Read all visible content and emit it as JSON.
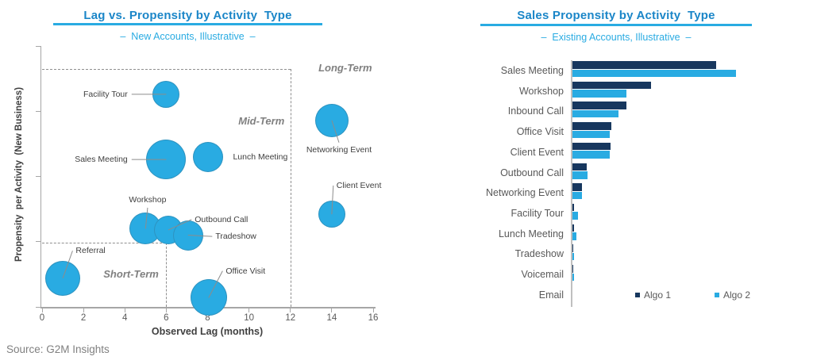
{
  "source": "Source: G2M Insights",
  "colors": {
    "cyan": "#29ABE2",
    "navy": "#17375E",
    "title_blue": "#1B86C8",
    "axis_gray": "#A6A6A6",
    "text_gray": "#595959"
  },
  "legend": {
    "position": "bottom-right"
  },
  "chart_data": [
    {
      "type": "scatter",
      "title": "Lag vs. Propensity by Activity  Type",
      "subtitle": "–  New Accounts, Illustrative  –",
      "xlabel": "Observed Lag (months)",
      "ylabel": "Propensity  per Activity  (New Business)",
      "xlim": [
        0,
        16
      ],
      "ylim": [
        0,
        100
      ],
      "xticks": [
        0,
        2,
        4,
        6,
        8,
        10,
        12,
        14,
        16
      ],
      "yticks": [
        0,
        25,
        50,
        75,
        100
      ],
      "grid": false,
      "bubble_color": "#29ABE2",
      "points": [
        {
          "label": "Facility Tour",
          "x": 6,
          "y": 81.5,
          "r": 17,
          "align": "right",
          "anchor": [
            4.25,
            81.5
          ],
          "leader": true
        },
        {
          "label": "Sales Meeting",
          "x": 6,
          "y": 56.5,
          "r": 25,
          "align": "right",
          "anchor": [
            4.25,
            56.5
          ],
          "leader": true
        },
        {
          "label": "Lunch Meeting",
          "x": 8,
          "y": 57.5,
          "r": 19,
          "align": "left",
          "anchor": [
            9.15,
            57.5
          ],
          "leader": false
        },
        {
          "label": "Networking Event",
          "x": 14,
          "y": 71.5,
          "r": 21,
          "align": "below",
          "anchor": [
            14.35,
            63.0
          ],
          "leader": true
        },
        {
          "label": "Client Event",
          "x": 14,
          "y": 35.5,
          "r": 17,
          "align": "left",
          "anchor": [
            14.15,
            46.5
          ],
          "leader": true
        },
        {
          "label": "Workshop",
          "x": 5,
          "y": 30.0,
          "r": 20,
          "align": "above",
          "anchor": [
            5.1,
            38.0
          ],
          "leader": true
        },
        {
          "label": "Outbound Call",
          "x": 6.1,
          "y": 29.5,
          "r": 18,
          "align": "left",
          "anchor": [
            7.3,
            33.5
          ],
          "leader": true
        },
        {
          "label": "Tradeshow",
          "x": 7.05,
          "y": 27.5,
          "r": 19,
          "align": "left",
          "anchor": [
            8.3,
            27.0
          ],
          "leader": true
        },
        {
          "label": "Referral",
          "x": 1,
          "y": 11.0,
          "r": 22,
          "align": "left",
          "anchor": [
            1.55,
            21.5
          ],
          "leader": true
        },
        {
          "label": "Office Visit",
          "x": 8.05,
          "y": 3.5,
          "r": 23,
          "align": "left",
          "anchor": [
            8.8,
            13.8
          ],
          "leader": true
        }
      ],
      "quadrants": [
        {
          "label": "Long-Term",
          "x": 14.65,
          "y": 91.5
        },
        {
          "label": "Mid-Term",
          "x": 10.6,
          "y": 71.0
        },
        {
          "label": "Short-Term",
          "x": 4.3,
          "y": 12.5
        }
      ],
      "dashed_lines": [
        {
          "o": "h",
          "y": 91.2,
          "x1": 0,
          "x2": 12
        },
        {
          "o": "v",
          "x": 12,
          "y1": 0,
          "y2": 91.2
        },
        {
          "o": "h",
          "y": 24.6,
          "x1": 0,
          "x2": 6
        },
        {
          "o": "v",
          "x": 6,
          "y1": 0,
          "y2": 24.6
        }
      ]
    },
    {
      "type": "bar",
      "orientation": "horizontal",
      "title": "Sales Propensity by Activity  Type",
      "subtitle": "–  Existing Accounts, Illustrative  –",
      "xlabel": "",
      "ylabel": "",
      "xlim": [
        0,
        100
      ],
      "grid": false,
      "categories": [
        "Sales Meeting",
        "Workshop",
        "Inbound Call",
        "Office Visit",
        "Client Event",
        "Outbound Call",
        "Networking Event",
        "Facility Tour",
        "Lunch Meeting",
        "Tradeshow",
        "Voicemail",
        "Email"
      ],
      "series": [
        {
          "name": "Algo 1",
          "color": "#17375E",
          "values": [
            88,
            48,
            33,
            24,
            23.5,
            8.5,
            6,
            0.8,
            0.8,
            0.3,
            0.3,
            0
          ]
        },
        {
          "name": "Algo 2",
          "color": "#29ABE2",
          "values": [
            100,
            33,
            28,
            23,
            23,
            9,
            6,
            3.5,
            2.5,
            0.9,
            0.9,
            0
          ]
        }
      ]
    }
  ]
}
